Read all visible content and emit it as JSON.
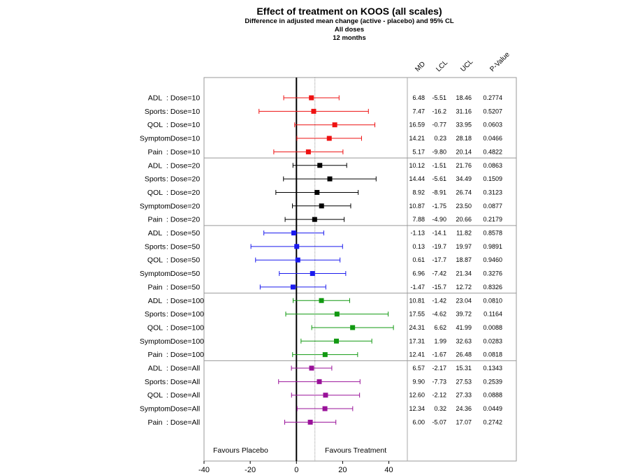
{
  "chart_data": {
    "type": "forest",
    "title": "Effect of treatment on KOOS (all scales)",
    "subtitles": [
      "Difference in adjusted mean change (active - placebo) and 95% CL",
      "All doses",
      "12 months"
    ],
    "column_headers": [
      "MD",
      "LCL",
      "UCL",
      "P-Value"
    ],
    "x_ticks": [
      -40,
      -20,
      0,
      20,
      40
    ],
    "xlim": [
      -40,
      48
    ],
    "reference_line": 0,
    "dotted_line": 8,
    "favours_left": "Favours Placebo",
    "favours_right": "Favours Treatment",
    "groups": [
      {
        "dose": "Dose=10",
        "color": "#ee1111",
        "rows": [
          {
            "scale": "ADL",
            "md": 6.48,
            "lcl": -5.51,
            "ucl": 18.46,
            "md_text": "6.48",
            "lcl_text": "-5.51",
            "ucl_text": "18.46",
            "p_text": "0.2774"
          },
          {
            "scale": "Sports",
            "md": 7.47,
            "lcl": -16.2,
            "ucl": 31.16,
            "md_text": "7.47",
            "lcl_text": "-16.2",
            "ucl_text": "31.16",
            "p_text": "0.5207"
          },
          {
            "scale": "QOL",
            "md": 16.59,
            "lcl": -0.77,
            "ucl": 33.95,
            "md_text": "16.59",
            "lcl_text": "-0.77",
            "ucl_text": "33.95",
            "p_text": "0.0603"
          },
          {
            "scale": "Symptom",
            "md": 14.21,
            "lcl": 0.23,
            "ucl": 28.18,
            "md_text": "14.21",
            "lcl_text": "0.23",
            "ucl_text": "28.18",
            "p_text": "0.0466"
          },
          {
            "scale": "Pain",
            "md": 5.17,
            "lcl": -9.8,
            "ucl": 20.14,
            "md_text": "5.17",
            "lcl_text": "-9.80",
            "ucl_text": "20.14",
            "p_text": "0.4822"
          }
        ]
      },
      {
        "dose": "Dose=20",
        "color": "#000000",
        "rows": [
          {
            "scale": "ADL",
            "md": 10.12,
            "lcl": -1.51,
            "ucl": 21.76,
            "md_text": "10.12",
            "lcl_text": "-1.51",
            "ucl_text": "21.76",
            "p_text": "0.0863"
          },
          {
            "scale": "Sports",
            "md": 14.44,
            "lcl": -5.61,
            "ucl": 34.49,
            "md_text": "14.44",
            "lcl_text": "-5.61",
            "ucl_text": "34.49",
            "p_text": "0.1509"
          },
          {
            "scale": "QOL",
            "md": 8.92,
            "lcl": -8.91,
            "ucl": 26.74,
            "md_text": "8.92",
            "lcl_text": "-8.91",
            "ucl_text": "26.74",
            "p_text": "0.3123"
          },
          {
            "scale": "Symptom",
            "md": 10.87,
            "lcl": -1.75,
            "ucl": 23.5,
            "md_text": "10.87",
            "lcl_text": "-1.75",
            "ucl_text": "23.50",
            "p_text": "0.0877"
          },
          {
            "scale": "Pain",
            "md": 7.88,
            "lcl": -4.9,
            "ucl": 20.66,
            "md_text": "7.88",
            "lcl_text": "-4.90",
            "ucl_text": "20.66",
            "p_text": "0.2179"
          }
        ]
      },
      {
        "dose": "Dose=50",
        "color": "#1a1aee",
        "rows": [
          {
            "scale": "ADL",
            "md": -1.13,
            "lcl": -14.1,
            "ucl": 11.82,
            "md_text": "-1.13",
            "lcl_text": "-14.1",
            "ucl_text": "11.82",
            "p_text": "0.8578"
          },
          {
            "scale": "Sports",
            "md": 0.13,
            "lcl": -19.7,
            "ucl": 19.97,
            "md_text": "0.13",
            "lcl_text": "-19.7",
            "ucl_text": "19.97",
            "p_text": "0.9891"
          },
          {
            "scale": "QOL",
            "md": 0.61,
            "lcl": -17.7,
            "ucl": 18.87,
            "md_text": "0.61",
            "lcl_text": "-17.7",
            "ucl_text": "18.87",
            "p_text": "0.9460"
          },
          {
            "scale": "Symptom",
            "md": 6.96,
            "lcl": -7.42,
            "ucl": 21.34,
            "md_text": "6.96",
            "lcl_text": "-7.42",
            "ucl_text": "21.34",
            "p_text": "0.3276"
          },
          {
            "scale": "Pain",
            "md": -1.47,
            "lcl": -15.7,
            "ucl": 12.72,
            "md_text": "-1.47",
            "lcl_text": "-15.7",
            "ucl_text": "12.72",
            "p_text": "0.8326"
          }
        ]
      },
      {
        "dose": "Dose=100",
        "color": "#119911",
        "rows": [
          {
            "scale": "ADL",
            "md": 10.81,
            "lcl": -1.42,
            "ucl": 23.04,
            "md_text": "10.81",
            "lcl_text": "-1.42",
            "ucl_text": "23.04",
            "p_text": "0.0810"
          },
          {
            "scale": "Sports",
            "md": 17.55,
            "lcl": -4.62,
            "ucl": 39.72,
            "md_text": "17.55",
            "lcl_text": "-4.62",
            "ucl_text": "39.72",
            "p_text": "0.1164"
          },
          {
            "scale": "QOL",
            "md": 24.31,
            "lcl": 6.62,
            "ucl": 41.99,
            "md_text": "24.31",
            "lcl_text": "6.62",
            "ucl_text": "41.99",
            "p_text": "0.0088"
          },
          {
            "scale": "Symptom",
            "md": 17.31,
            "lcl": 1.99,
            "ucl": 32.63,
            "md_text": "17.31",
            "lcl_text": "1.99",
            "ucl_text": "32.63",
            "p_text": "0.0283"
          },
          {
            "scale": "Pain",
            "md": 12.41,
            "lcl": -1.67,
            "ucl": 26.48,
            "md_text": "12.41",
            "lcl_text": "-1.67",
            "ucl_text": "26.48",
            "p_text": "0.0818"
          }
        ]
      },
      {
        "dose": "Dose=All",
        "color": "#991199",
        "rows": [
          {
            "scale": "ADL",
            "md": 6.57,
            "lcl": -2.17,
            "ucl": 15.31,
            "md_text": "6.57",
            "lcl_text": "-2.17",
            "ucl_text": "15.31",
            "p_text": "0.1343"
          },
          {
            "scale": "Sports",
            "md": 9.9,
            "lcl": -7.73,
            "ucl": 27.53,
            "md_text": "9.90",
            "lcl_text": "-7.73",
            "ucl_text": "27.53",
            "p_text": "0.2539"
          },
          {
            "scale": "QOL",
            "md": 12.6,
            "lcl": -2.12,
            "ucl": 27.33,
            "md_text": "12.60",
            "lcl_text": "-2.12",
            "ucl_text": "27.33",
            "p_text": "0.0888"
          },
          {
            "scale": "Symptom",
            "md": 12.34,
            "lcl": 0.32,
            "ucl": 24.36,
            "md_text": "12.34",
            "lcl_text": "0.32",
            "ucl_text": "24.36",
            "p_text": "0.0449"
          },
          {
            "scale": "Pain",
            "md": 6.0,
            "lcl": -5.07,
            "ucl": 17.07,
            "md_text": "6.00",
            "lcl_text": "-5.07",
            "ucl_text": "17.07",
            "p_text": "0.2742"
          }
        ]
      }
    ]
  }
}
